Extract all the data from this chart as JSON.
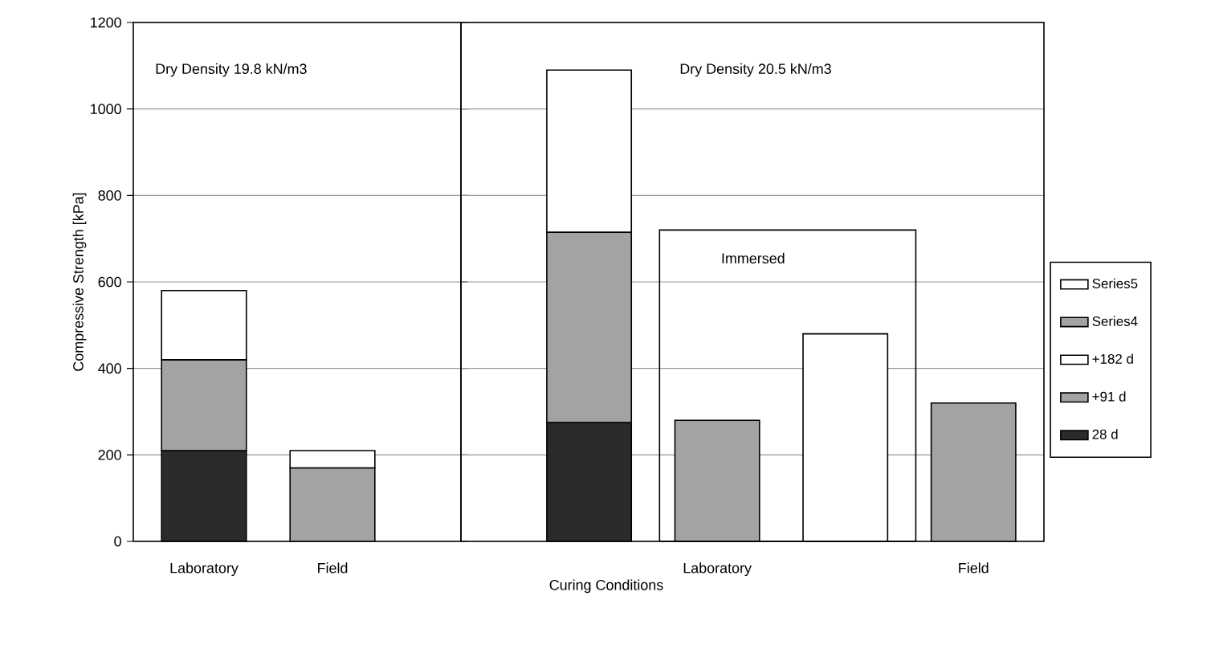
{
  "chart_data": [
    {
      "type": "bar",
      "stacked": true,
      "categories": [
        "Laboratory",
        "Field"
      ],
      "series": [
        {
          "color": "#2b2b2b",
          "values": [
            210,
            null
          ]
        },
        {
          "color": "#a3a3a3",
          "values": [
            210,
            170
          ]
        },
        {
          "color": "#ffffff",
          "values": [
            160,
            40
          ]
        }
      ],
      "ylabel": "Compressive Strength [kPa]",
      "ylim": [
        0,
        1200
      ],
      "yticks": [
        0,
        200,
        400,
        600,
        800,
        1000,
        1200
      ],
      "grid": "y",
      "annotations": [
        "Dry Density 19.8 kN/m3"
      ]
    },
    {
      "type": "bar",
      "stacked": true,
      "categories": [
        null,
        "Laboratory",
        null,
        "Field"
      ],
      "series": [
        {
          "name": "28 d",
          "color": "#2b2b2b",
          "values": [
            275,
            null,
            null,
            null
          ]
        },
        {
          "name": "+91 d",
          "color": "#a3a3a3",
          "values": [
            440,
            null,
            null,
            null
          ]
        },
        {
          "name": "+182 d",
          "color": "#ffffff",
          "values": [
            375,
            null,
            null,
            null
          ]
        },
        {
          "name": "Series4",
          "color": "#a3a3a3",
          "values": [
            null,
            280,
            null,
            320
          ]
        },
        {
          "name": "Series5",
          "color": "#ffffff",
          "values": [
            null,
            null,
            480,
            null
          ]
        }
      ],
      "ylim": [
        0,
        1200
      ],
      "yticks": [
        0,
        200,
        400,
        600,
        800,
        1000,
        1200
      ],
      "xlabel": "Curing Conditions",
      "tick_labels": "x",
      "grid": "y",
      "legend": "right",
      "annotations": [
        "Dry Density 20.5 kN/m3",
        "Immersed"
      ]
    }
  ]
}
